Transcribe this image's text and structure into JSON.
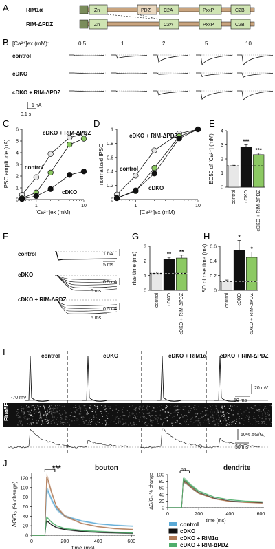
{
  "panels": {
    "A": {
      "letter": "A",
      "rows": [
        "RIM1α",
        "RIM-ΔPDZ"
      ],
      "domains": [
        "Zn",
        "PDZ",
        "C2A",
        "PxxP",
        "C2B"
      ]
    },
    "B": {
      "letter": "B",
      "header": "[Ca²⁺]ex (mM):",
      "concs": [
        "0.5",
        "1",
        "2",
        "5",
        "10"
      ],
      "rows": [
        "control",
        "cDKO",
        "cDKO + RIM-ΔPDZ"
      ],
      "scale_y": "1 nA",
      "scale_x": "0.1 s"
    },
    "C": {
      "letter": "C",
      "ylabel": "IPSC amplitude (nA)",
      "xlabel": "[Ca²⁺]ex (mM)",
      "labels": {
        "resc": "cDKO + RIM-ΔPDZ",
        "ctrl": "control",
        "cdko": "cDKO"
      }
    },
    "D": {
      "letter": "D",
      "ylabel": "normalized IPSC",
      "xlabel": "[Ca²⁺]ex (mM)",
      "labels": {
        "resc": "cDKO + RIM-ΔPDZ",
        "ctrl": "control",
        "cdko": "cDKO"
      }
    },
    "E": {
      "letter": "E",
      "ylabel": "EC50 of [Ca²⁺] (mM)",
      "sig": [
        "***",
        "***"
      ]
    },
    "F": {
      "letter": "F",
      "rows": [
        "control",
        "cDKO",
        "cDKO + RIM-ΔPDZ"
      ],
      "scales": [
        "1 nA",
        "5 ms",
        "0.5 nA",
        "5 ms",
        "0.5 nA",
        "5 ms"
      ]
    },
    "G": {
      "letter": "G",
      "ylabel": "rise time (ms)",
      "sig": [
        "**",
        "**"
      ]
    },
    "H": {
      "letter": "H",
      "ylabel": "SD of rise time (ms)",
      "sig": [
        "*",
        "*"
      ]
    },
    "I": {
      "letter": "I",
      "groups": [
        "control",
        "cDKO",
        "cDKO + RIM1α",
        "cDKO + RIM-ΔPDZ"
      ],
      "vrest": "-70 mV",
      "scale_v": "20 mV",
      "scale_t": "50 ms",
      "dye": "Fluo5F",
      "scale_f": "50% ΔG/G₀",
      "scale_t2": "50 ms"
    },
    "J": {
      "letter": "J",
      "title_bouton": "bouton",
      "title_dendrite": "dendrite",
      "sig_bouton": "***",
      "sig_dendrite": "ns",
      "ylabel": "ΔG/G₀ (% change)",
      "ylabel_inset": "ΔG/G₀ % change",
      "xlabel": "time (ms)",
      "xlabel_inset": "time (ms)",
      "legend": [
        "control",
        "cDKO",
        "cDKO + RIM1α",
        "cDKO + RIM-ΔPDZ"
      ]
    }
  },
  "colors": {
    "control": "#e8e8e8",
    "cdko": "#111111",
    "rescue": "#8cc963",
    "j_control": "#5aa9d6",
    "j_cdko": "#111111",
    "j_rim1a": "#b07a56",
    "j_dpdz": "#4fae6b",
    "rim1a_bar": "#c9a47e",
    "pdz_box": "#e9d8bf"
  },
  "chart_data": [
    {
      "type": "line",
      "panel": "C",
      "xscale": "log",
      "x": [
        0.5,
        1,
        2,
        5,
        10
      ],
      "xlim": [
        0.5,
        10
      ],
      "ylim": [
        0,
        6
      ],
      "yticks": [
        0,
        1,
        2,
        3,
        4,
        5,
        6
      ],
      "xticks": [
        1,
        10
      ],
      "series": [
        {
          "name": "control",
          "values": [
            0.4,
            1.9,
            3.9,
            5.3,
            5.6
          ]
        },
        {
          "name": "cDKO",
          "values": [
            0.05,
            0.3,
            0.9,
            2.1,
            2.4
          ]
        },
        {
          "name": "cDKO + RIM-ΔPDZ",
          "values": [
            0.1,
            0.6,
            2.3,
            4.7,
            5.2
          ]
        }
      ]
    },
    {
      "type": "line",
      "panel": "D",
      "xscale": "log",
      "x": [
        0.5,
        1,
        2,
        5,
        10
      ],
      "xlim": [
        0.5,
        10
      ],
      "ylim": [
        0,
        1
      ],
      "yticks": [
        0,
        0.2,
        0.4,
        0.6,
        0.8,
        1.0
      ],
      "xticks": [
        1,
        10
      ],
      "series": [
        {
          "name": "control",
          "values": [
            0.07,
            0.34,
            0.7,
            0.94,
            1.0
          ]
        },
        {
          "name": "cDKO",
          "values": [
            0.02,
            0.13,
            0.37,
            0.87,
            1.0
          ]
        },
        {
          "name": "cDKO + RIM-ΔPDZ",
          "values": [
            0.02,
            0.12,
            0.45,
            0.9,
            1.0
          ]
        }
      ]
    },
    {
      "type": "bar",
      "panel": "E",
      "categories": [
        "control",
        "cDKO",
        "cDKO + RIM-ΔPDZ"
      ],
      "values": [
        1.5,
        2.85,
        2.3
      ],
      "errors": [
        0.05,
        0.15,
        0.1
      ],
      "ylim": [
        0,
        4
      ],
      "yticks": [
        0,
        1,
        2,
        3,
        4
      ],
      "ref": 1.5
    },
    {
      "type": "bar",
      "panel": "G",
      "categories": [
        "control",
        "cDKO",
        "cDKO + RIM-ΔPDZ"
      ],
      "values": [
        1.15,
        2.1,
        2.2
      ],
      "errors": [
        0.1,
        0.15,
        0.2
      ],
      "ylim": [
        0,
        3
      ],
      "yticks": [
        0,
        1,
        2,
        3
      ],
      "ref": 1.15
    },
    {
      "type": "bar",
      "panel": "H",
      "categories": [
        "control",
        "cDKO",
        "cDKO + RIM-ΔPDZ"
      ],
      "values": [
        0.12,
        0.55,
        0.45
      ],
      "errors": [
        0.02,
        0.13,
        0.07
      ],
      "ylim": [
        0,
        0.6
      ],
      "yticks": [
        0,
        0.2,
        0.4,
        0.6
      ],
      "ref": 0.12
    },
    {
      "type": "line",
      "panel": "J-bouton",
      "xlim": [
        0,
        620
      ],
      "ylim": [
        0,
        130
      ],
      "xticks": [
        0,
        200,
        400,
        600
      ],
      "yticks": [
        0,
        20,
        40,
        60,
        80,
        100,
        120
      ],
      "x": [
        0,
        80,
        90,
        100,
        120,
        150,
        200,
        300,
        400,
        500,
        610
      ],
      "series": [
        {
          "name": "control",
          "values": [
            0,
            0,
            95,
            92,
            75,
            55,
            40,
            30,
            24,
            21,
            19
          ]
        },
        {
          "name": "cDKO",
          "values": [
            0,
            0,
            30,
            28,
            22,
            16,
            12,
            8,
            6,
            5,
            4
          ]
        },
        {
          "name": "cDKO + RIM1α",
          "values": [
            0,
            0,
            122,
            115,
            90,
            60,
            40,
            25,
            18,
            14,
            12
          ]
        },
        {
          "name": "cDKO + RIM-ΔPDZ",
          "values": [
            0,
            0,
            38,
            35,
            27,
            20,
            14,
            10,
            8,
            6,
            5
          ]
        }
      ]
    },
    {
      "type": "line",
      "panel": "J-dendrite",
      "xlim": [
        0,
        620
      ],
      "ylim": [
        0,
        100
      ],
      "xticks": [
        0,
        200,
        400,
        600
      ],
      "yticks": [
        0,
        20,
        40,
        60,
        80,
        100
      ],
      "x": [
        0,
        90,
        100,
        120,
        150,
        200,
        300,
        400,
        500,
        610
      ],
      "series": [
        {
          "name": "control",
          "values": [
            0,
            0,
            80,
            75,
            62,
            45,
            28,
            20,
            17,
            15
          ]
        },
        {
          "name": "cDKO",
          "values": [
            0,
            0,
            82,
            77,
            63,
            45,
            28,
            20,
            17,
            15
          ]
        },
        {
          "name": "cDKO + RIM1α",
          "values": [
            0,
            0,
            80,
            75,
            62,
            44,
            27,
            19,
            16,
            14
          ]
        },
        {
          "name": "cDKO + RIM-ΔPDZ",
          "values": [
            0,
            0,
            88,
            82,
            68,
            50,
            32,
            24,
            20,
            18
          ]
        }
      ]
    }
  ]
}
